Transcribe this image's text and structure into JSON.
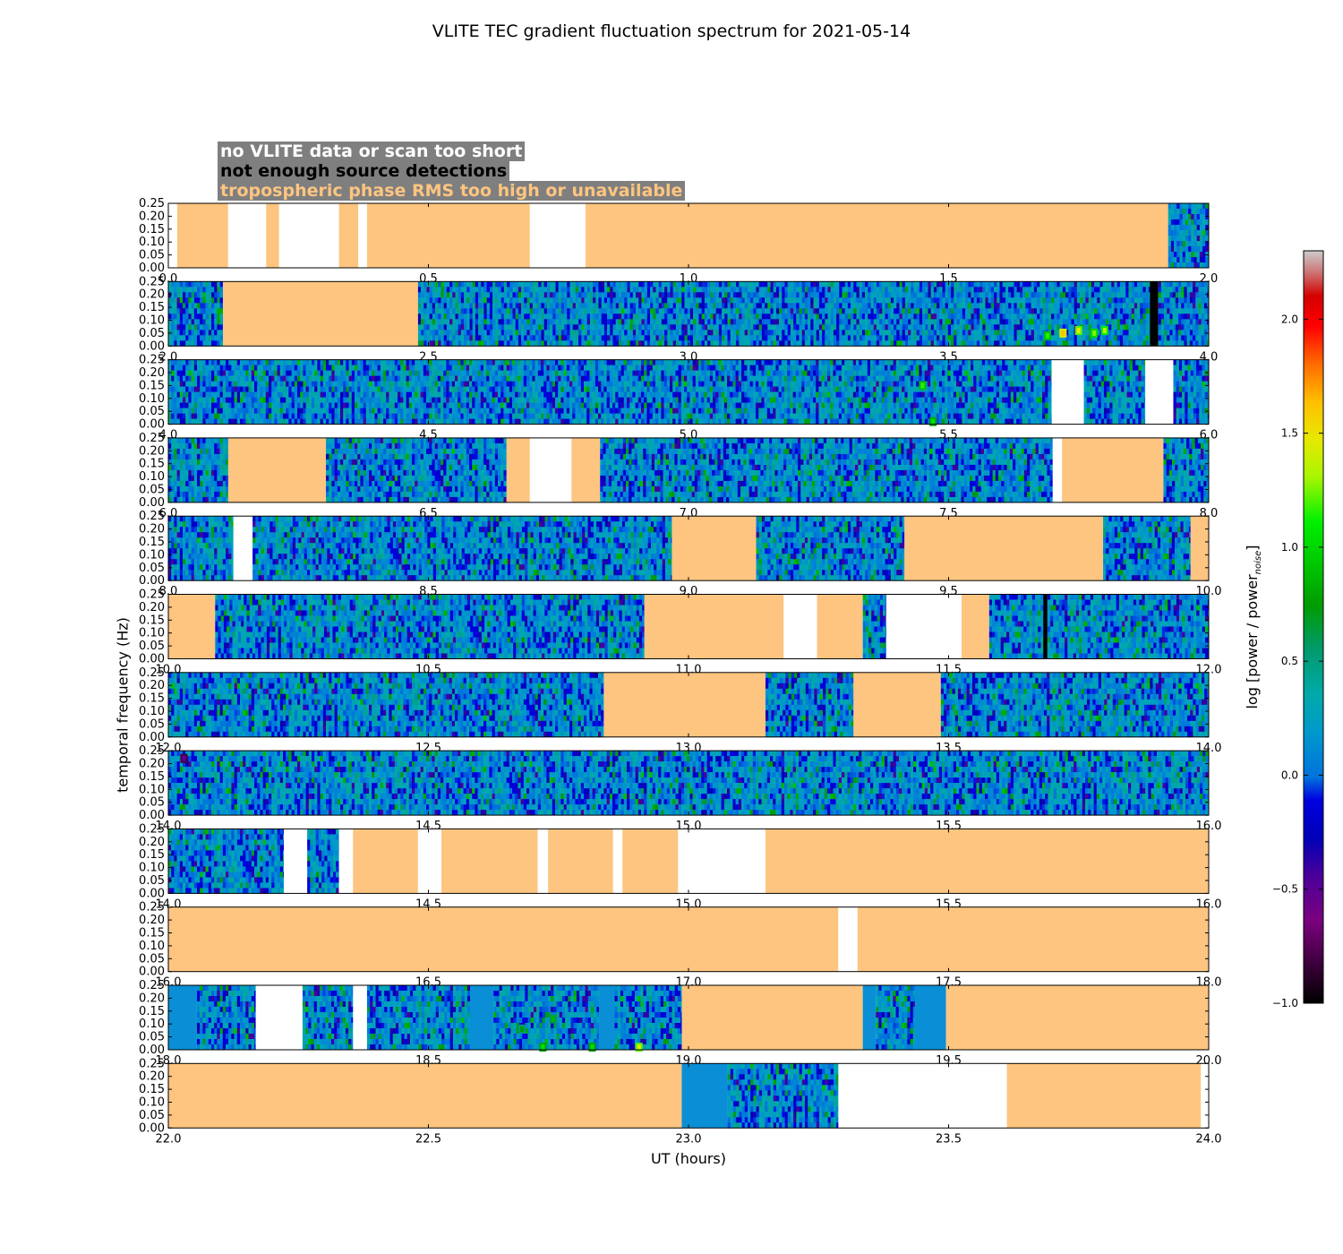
{
  "chart_data": {
    "type": "heatmap",
    "title": "VLITE TEC gradient fluctuation spectrum for 2021-05-14",
    "xlabel": "UT (hours)",
    "ylabel": "temporal frequency (Hz)",
    "colorbar": {
      "label_main": "log [power / power",
      "label_sub": "noise",
      "label_end": "]",
      "range": [
        -1.0,
        2.3
      ],
      "ticks": [
        "−1.0",
        "−0.5",
        "0.0",
        "0.5",
        "1.0",
        "1.5",
        "2.0"
      ],
      "tick_values": [
        -1.0,
        -0.5,
        0.0,
        0.5,
        1.0,
        1.5,
        2.0
      ]
    },
    "legend": [
      {
        "label": "no VLITE data or scan too short",
        "color": "#ffffff",
        "status": "nodata"
      },
      {
        "label": "not enough source detections",
        "color": "#000000",
        "status": "nodetect"
      },
      {
        "label": "tropospheric phase RMS too high or unavailable",
        "color": "#fdc580",
        "status": "trop"
      }
    ],
    "y_ticks": [
      "0.00",
      "0.05",
      "0.10",
      "0.15",
      "0.20",
      "0.25"
    ],
    "y_tick_values": [
      0,
      0.05,
      0.1,
      0.15,
      0.2,
      0.25
    ],
    "ylim": [
      0,
      0.25
    ],
    "status_colors": {
      "nodata": "#ffffff",
      "nodetect": "#000000",
      "trop": "#fdc580",
      "low": "#0a8fd6"
    },
    "panels": [
      {
        "x_ticks": [
          "0.0",
          "0.5",
          "1.0",
          "1.5",
          "2.0"
        ],
        "xlim": [
          0,
          2
        ],
        "segments": [
          [
            "nodata",
            0,
            0.017
          ],
          [
            "trop",
            0.017,
            0.115
          ],
          [
            "nodata",
            0.115,
            0.188
          ],
          [
            "trop",
            0.188,
            0.213
          ],
          [
            "nodata",
            0.213,
            0.328
          ],
          [
            "trop",
            0.328,
            0.365
          ],
          [
            "nodata",
            0.365,
            0.382
          ],
          [
            "trop",
            0.382,
            0.695
          ],
          [
            "nodata",
            0.695,
            0.802
          ],
          [
            "trop",
            0.802,
            1.922
          ],
          [
            "data",
            1.922,
            2.0
          ]
        ],
        "hot": []
      },
      {
        "x_ticks": [
          "2.0",
          "2.5",
          "3.0",
          "3.5",
          "4.0"
        ],
        "xlim": [
          2,
          4
        ],
        "segments": [
          [
            "data",
            2.0,
            2.105
          ],
          [
            "trop",
            2.105,
            2.48
          ],
          [
            "data",
            2.48,
            3.887
          ],
          [
            "nodetect",
            3.887,
            3.903
          ],
          [
            "data",
            3.903,
            4.0
          ]
        ],
        "hot": [
          [
            3.72,
            0.05,
            1.4
          ],
          [
            3.75,
            0.06,
            1.2
          ],
          [
            3.78,
            0.05,
            1.0
          ],
          [
            3.8,
            0.06,
            1.1
          ],
          [
            3.69,
            0.04,
            0.9
          ]
        ]
      },
      {
        "x_ticks": [
          "4.0",
          "4.5",
          "5.0",
          "5.5",
          "6.0"
        ],
        "xlim": [
          4,
          6
        ],
        "segments": [
          [
            "data",
            4.0,
            5.698
          ],
          [
            "nodata",
            5.698,
            5.76
          ],
          [
            "data",
            5.76,
            5.878
          ],
          [
            "nodata",
            5.878,
            5.932
          ],
          [
            "data",
            5.932,
            6.0
          ]
        ],
        "hot": [
          [
            5.45,
            0.15,
            0.9
          ],
          [
            5.47,
            0.01,
            0.8
          ]
        ]
      },
      {
        "x_ticks": [
          "6.0",
          "6.5",
          "7.0",
          "7.5",
          "8.0"
        ],
        "xlim": [
          6,
          8
        ],
        "segments": [
          [
            "data",
            6.0,
            6.115
          ],
          [
            "trop",
            6.115,
            6.303
          ],
          [
            "data",
            6.303,
            6.65
          ],
          [
            "trop",
            6.65,
            6.695
          ],
          [
            "nodata",
            6.695,
            6.775
          ],
          [
            "trop",
            6.775,
            6.83
          ],
          [
            "data",
            6.83,
            7.7
          ],
          [
            "nodata",
            7.7,
            7.718
          ],
          [
            "trop",
            7.718,
            7.913
          ],
          [
            "data",
            7.913,
            8.0
          ]
        ],
        "hot": []
      },
      {
        "x_ticks": [
          "8.0",
          "8.5",
          "9.0",
          "9.5",
          "10.0"
        ],
        "xlim": [
          8,
          10
        ],
        "segments": [
          [
            "data",
            8.0,
            8.125
          ],
          [
            "nodata",
            8.125,
            8.162
          ],
          [
            "data",
            8.162,
            8.968
          ],
          [
            "trop",
            8.968,
            9.13
          ],
          [
            "data",
            9.13,
            9.415
          ],
          [
            "trop",
            9.415,
            9.797
          ],
          [
            "data",
            9.797,
            9.965
          ],
          [
            "trop",
            9.965,
            10.0
          ]
        ],
        "hot": []
      },
      {
        "x_ticks": [
          "10.0",
          "10.5",
          "11.0",
          "11.5",
          "12.0"
        ],
        "xlim": [
          10,
          12
        ],
        "segments": [
          [
            "trop",
            10.0,
            10.09
          ],
          [
            "data",
            10.09,
            10.915
          ],
          [
            "trop",
            10.915,
            11.183
          ],
          [
            "nodata",
            11.183,
            11.247
          ],
          [
            "trop",
            11.247,
            11.335
          ],
          [
            "data",
            11.335,
            11.38
          ],
          [
            "nodata",
            11.38,
            11.525
          ],
          [
            "trop",
            11.525,
            11.578
          ],
          [
            "data",
            11.578,
            11.682
          ],
          [
            "nodetect",
            11.682,
            11.69
          ],
          [
            "data",
            11.69,
            12.0
          ]
        ],
        "hot": []
      },
      {
        "x_ticks": [
          "12.0",
          "12.5",
          "13.0",
          "13.5",
          "14.0"
        ],
        "xlim": [
          12,
          14
        ],
        "segments": [
          [
            "data",
            12.0,
            12.837
          ],
          [
            "trop",
            12.837,
            13.148
          ],
          [
            "data",
            13.148,
            13.317
          ],
          [
            "trop",
            13.317,
            13.485
          ],
          [
            "data",
            13.485,
            14.0
          ]
        ],
        "hot": []
      },
      {
        "x_ticks": [
          "14.0",
          "14.5",
          "15.0",
          "15.5",
          "16.0"
        ],
        "xlim": [
          14,
          16
        ],
        "segments": [
          [
            "data",
            14.0,
            16.0
          ]
        ],
        "hot": [
          [
            14.03,
            0.22,
            -0.8
          ]
        ]
      },
      {
        "x_ticks": [
          "14.0",
          "14.5",
          "15.0",
          "15.5",
          "16.0"
        ],
        "xlim": [
          14,
          16
        ],
        "segments": [
          [
            "data",
            14.0,
            14.222
          ],
          [
            "nodata",
            14.222,
            14.267
          ],
          [
            "data",
            14.267,
            14.328
          ],
          [
            "nodata",
            14.328,
            14.355
          ],
          [
            "trop",
            14.355,
            14.48
          ],
          [
            "nodata",
            14.48,
            14.525
          ],
          [
            "trop",
            14.525,
            14.71
          ],
          [
            "nodata",
            14.71,
            14.73
          ],
          [
            "trop",
            14.73,
            14.855
          ],
          [
            "nodata",
            14.855,
            14.873
          ],
          [
            "trop",
            14.873,
            14.98
          ],
          [
            "nodata",
            14.98,
            15.148
          ],
          [
            "trop",
            15.148,
            16.0
          ]
        ],
        "hot": []
      },
      {
        "x_ticks": [
          "16.0",
          "16.5",
          "17.0",
          "17.5",
          "18.0"
        ],
        "xlim": [
          16,
          18
        ],
        "segments": [
          [
            "trop",
            16.0,
            17.288
          ],
          [
            "nodata",
            17.288,
            17.325
          ],
          [
            "trop",
            17.325,
            18.0
          ]
        ],
        "hot": []
      },
      {
        "x_ticks": [
          "18.0",
          "18.5",
          "19.0",
          "19.5",
          "20.0"
        ],
        "xlim": [
          18,
          20
        ],
        "segments": [
          [
            "low",
            18.0,
            18.055
          ],
          [
            "data",
            18.055,
            18.168
          ],
          [
            "nodata",
            18.168,
            18.258
          ],
          [
            "data",
            18.258,
            18.355
          ],
          [
            "nodata",
            18.355,
            18.382
          ],
          [
            "data",
            18.382,
            18.58
          ],
          [
            "low",
            18.58,
            18.625
          ],
          [
            "data",
            18.625,
            18.828
          ],
          [
            "low",
            18.828,
            18.858
          ],
          [
            "data",
            18.858,
            18.987
          ],
          [
            "trop",
            18.987,
            19.335
          ],
          [
            "low",
            19.335,
            19.36
          ],
          [
            "data",
            19.36,
            19.435
          ],
          [
            "low",
            19.435,
            19.495
          ],
          [
            "trop",
            19.495,
            20.0
          ]
        ],
        "hot": [
          [
            18.72,
            0.01,
            0.8
          ],
          [
            18.815,
            0.01,
            0.8
          ],
          [
            18.905,
            0.01,
            1.2
          ],
          [
            18.74,
            0.12,
            0.6
          ],
          [
            18.68,
            0.08,
            0.5
          ]
        ]
      },
      {
        "x_ticks": [
          "22.0",
          "22.5",
          "23.0",
          "23.5",
          "24.0"
        ],
        "xlim": [
          22,
          24
        ],
        "segments": [
          [
            "trop",
            22.0,
            22.987
          ],
          [
            "low",
            22.987,
            23.075
          ],
          [
            "data",
            23.075,
            23.288
          ],
          [
            "nodata",
            23.288,
            23.612
          ],
          [
            "trop",
            23.612,
            23.985
          ],
          [
            "nodata",
            23.985,
            24.0
          ]
        ],
        "hot": []
      }
    ]
  }
}
